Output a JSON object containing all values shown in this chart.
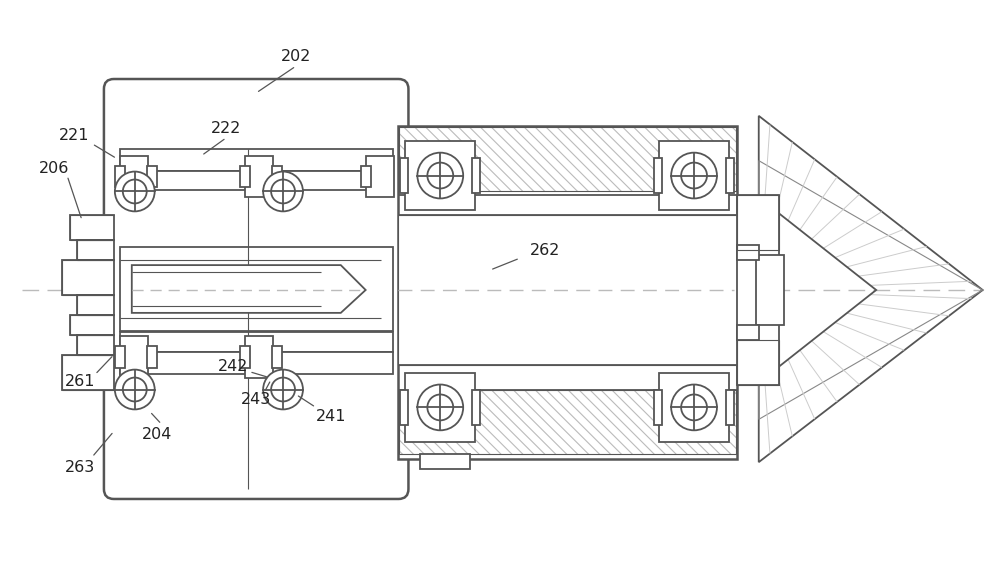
{
  "bg_color": "#ffffff",
  "lc": "#555555",
  "lc2": "#333333",
  "hatch_color": "#aaaaaa",
  "dash_color": "#aaaaaa",
  "label_color": "#222222",
  "lw": 1.3,
  "lw2": 1.8,
  "lw_thin": 0.8,
  "label_fontsize": 11.5
}
